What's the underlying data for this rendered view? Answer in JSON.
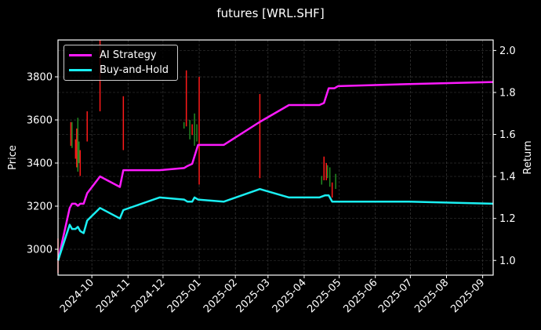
{
  "chart_data": {
    "type": "line",
    "title": "futures [WRL.SHF]",
    "xlabel": "",
    "ylabel_left": "Price",
    "ylabel_right": "Return",
    "x_tick_labels": [
      "2024-10",
      "2024-11",
      "2024-12",
      "2025-01",
      "2025-02",
      "2025-03",
      "2025-04",
      "2025-05",
      "2025-06",
      "2025-07",
      "2025-08",
      "2025-09"
    ],
    "y_left_ticks": [
      3000,
      3200,
      3400,
      3600,
      3800
    ],
    "y_right_ticks": [
      1.0,
      1.2,
      1.4,
      1.6,
      1.8,
      2.0
    ],
    "ylim_left": [
      2880,
      3971
    ],
    "ylim_right": [
      0.93,
      2.05
    ],
    "grid": true,
    "legend_position": "upper left",
    "background": "#000000",
    "series": [
      {
        "name": "AI Strategy",
        "axis": "right",
        "color": "#ff1aff",
        "points": [
          [
            "2024-09-02",
            1.0
          ],
          [
            "2024-09-12",
            1.25
          ],
          [
            "2024-09-14",
            1.27
          ],
          [
            "2024-09-17",
            1.27
          ],
          [
            "2024-09-19",
            1.26
          ],
          [
            "2024-09-21",
            1.27
          ],
          [
            "2024-09-24",
            1.27
          ],
          [
            "2024-09-27",
            1.32
          ],
          [
            "2024-10-08",
            1.4
          ],
          [
            "2024-10-25",
            1.35
          ],
          [
            "2024-10-28",
            1.43
          ],
          [
            "2024-11-28",
            1.43
          ],
          [
            "2024-12-19",
            1.44
          ],
          [
            "2024-12-22",
            1.45
          ],
          [
            "2024-12-26",
            1.46
          ],
          [
            "2024-12-31",
            1.55
          ],
          [
            "2025-01-22",
            1.55
          ],
          [
            "2025-02-22",
            1.66
          ],
          [
            "2025-03-19",
            1.74
          ],
          [
            "2025-04-14",
            1.74
          ],
          [
            "2025-04-18",
            1.75
          ],
          [
            "2025-04-22",
            1.82
          ],
          [
            "2025-04-27",
            1.82
          ],
          [
            "2025-04-30",
            1.83
          ],
          [
            "2025-06-30",
            1.84
          ],
          [
            "2025-09-10",
            1.85
          ]
        ]
      },
      {
        "name": "Buy-and-Hold",
        "axis": "right",
        "color": "#1aeff2",
        "points": [
          [
            "2024-09-02",
            1.0
          ],
          [
            "2024-09-12",
            1.17
          ],
          [
            "2024-09-14",
            1.15
          ],
          [
            "2024-09-17",
            1.15
          ],
          [
            "2024-09-19",
            1.16
          ],
          [
            "2024-09-21",
            1.14
          ],
          [
            "2024-09-24",
            1.13
          ],
          [
            "2024-09-27",
            1.19
          ],
          [
            "2024-10-08",
            1.25
          ],
          [
            "2024-10-25",
            1.2
          ],
          [
            "2024-10-28",
            1.24
          ],
          [
            "2024-11-28",
            1.3
          ],
          [
            "2024-12-19",
            1.29
          ],
          [
            "2024-12-22",
            1.28
          ],
          [
            "2024-12-26",
            1.28
          ],
          [
            "2024-12-28",
            1.3
          ],
          [
            "2024-12-31",
            1.29
          ],
          [
            "2025-01-22",
            1.28
          ],
          [
            "2025-02-22",
            1.34
          ],
          [
            "2025-03-19",
            1.3
          ],
          [
            "2025-04-14",
            1.3
          ],
          [
            "2025-04-19",
            1.31
          ],
          [
            "2025-04-22",
            1.31
          ],
          [
            "2025-04-25",
            1.28
          ],
          [
            "2025-04-30",
            1.28
          ],
          [
            "2025-06-30",
            1.28
          ],
          [
            "2025-09-10",
            1.27
          ]
        ]
      }
    ],
    "candles": {
      "axis": "left",
      "up_color": "#228b22",
      "down_color": "#ff1a1a",
      "bars": [
        {
          "date": "2024-09-02",
          "low": 2890,
          "high": 3050,
          "dir": "down"
        },
        {
          "date": "2024-09-13",
          "low": 3480,
          "high": 3590,
          "dir": "down"
        },
        {
          "date": "2024-09-14",
          "low": 3470,
          "high": 3590,
          "dir": "up"
        },
        {
          "date": "2024-09-17",
          "low": 3420,
          "high": 3510,
          "dir": "down"
        },
        {
          "date": "2024-09-18",
          "low": 3380,
          "high": 3560,
          "dir": "down"
        },
        {
          "date": "2024-09-19",
          "low": 3360,
          "high": 3610,
          "dir": "up"
        },
        {
          "date": "2024-09-20",
          "low": 3400,
          "high": 3500,
          "dir": "up"
        },
        {
          "date": "2024-09-21",
          "low": 3340,
          "high": 3460,
          "dir": "down"
        },
        {
          "date": "2024-09-27",
          "low": 3500,
          "high": 3640,
          "dir": "down"
        },
        {
          "date": "2024-10-08",
          "low": 3640,
          "high": 3970,
          "dir": "down"
        },
        {
          "date": "2024-10-28",
          "low": 3460,
          "high": 3710,
          "dir": "down"
        },
        {
          "date": "2024-12-21",
          "low": 3570,
          "high": 3830,
          "dir": "down"
        },
        {
          "date": "2024-12-19",
          "low": 3560,
          "high": 3590,
          "dir": "up"
        },
        {
          "date": "2024-12-24",
          "low": 3510,
          "high": 3600,
          "dir": "up"
        },
        {
          "date": "2024-12-26",
          "low": 3530,
          "high": 3580,
          "dir": "down"
        },
        {
          "date": "2024-12-28",
          "low": 3480,
          "high": 3630,
          "dir": "up"
        },
        {
          "date": "2024-12-30",
          "low": 3500,
          "high": 3580,
          "dir": "up"
        },
        {
          "date": "2025-01-01",
          "low": 3300,
          "high": 3800,
          "dir": "down"
        },
        {
          "date": "2025-02-22",
          "low": 3330,
          "high": 3720,
          "dir": "down"
        },
        {
          "date": "2025-04-16",
          "low": 3300,
          "high": 3340,
          "dir": "up"
        },
        {
          "date": "2025-04-18",
          "low": 3320,
          "high": 3430,
          "dir": "down"
        },
        {
          "date": "2025-04-20",
          "low": 3320,
          "high": 3400,
          "dir": "down"
        },
        {
          "date": "2025-04-21",
          "low": 3330,
          "high": 3390,
          "dir": "up"
        },
        {
          "date": "2025-04-23",
          "low": 3290,
          "high": 3380,
          "dir": "up"
        },
        {
          "date": "2025-04-25",
          "low": 3240,
          "high": 3310,
          "dir": "down"
        },
        {
          "date": "2025-04-28",
          "low": 3280,
          "high": 3350,
          "dir": "up"
        }
      ]
    }
  },
  "legend": {
    "items": [
      {
        "label": "AI Strategy",
        "color": "#ff1aff"
      },
      {
        "label": "Buy-and-Hold",
        "color": "#1aeff2"
      }
    ]
  }
}
